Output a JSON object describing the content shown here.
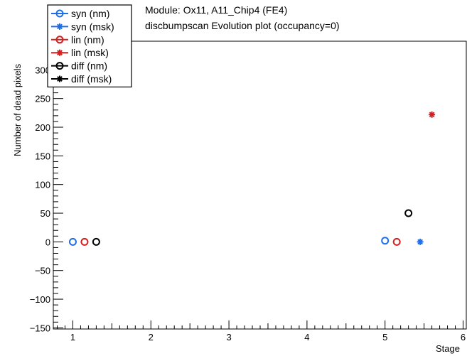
{
  "chart_data": {
    "type": "scatter",
    "title": [
      "Module: Ox11, A11_Chip4 (FE4)",
      "discbumpscan Evolution plot (occupancy=0)"
    ],
    "xlabel": "Stage",
    "ylabel": "Number of dead pixels",
    "xlim": [
      0.75,
      6.05
    ],
    "ylim": [
      -152,
      350
    ],
    "xticks": [
      1,
      2,
      3,
      4,
      5,
      6
    ],
    "yticks": [
      -150,
      -100,
      -50,
      0,
      50,
      100,
      150,
      200,
      250,
      300
    ],
    "ytick_labels": [
      "−150",
      "−100",
      "−50",
      "0",
      "50",
      "100",
      "150",
      "200",
      "250",
      "300"
    ],
    "legend_position": "top-left",
    "series": [
      {
        "name": "syn (nm)",
        "color": "#1f6ee8",
        "marker": "open-circle",
        "points": [
          [
            1.0,
            0
          ],
          [
            5.0,
            2
          ]
        ]
      },
      {
        "name": "syn (msk)",
        "color": "#1f6ee8",
        "marker": "star",
        "points": [
          [
            5.45,
            0
          ]
        ]
      },
      {
        "name": "lin (nm)",
        "color": "#d42020",
        "marker": "open-circle",
        "points": [
          [
            1.15,
            0
          ],
          [
            5.15,
            0
          ]
        ]
      },
      {
        "name": "lin (msk)",
        "color": "#d42020",
        "marker": "star",
        "points": [
          [
            5.6,
            222
          ]
        ]
      },
      {
        "name": "diff (nm)",
        "color": "#000000",
        "marker": "open-circle",
        "points": [
          [
            1.3,
            0
          ],
          [
            5.3,
            50
          ]
        ]
      },
      {
        "name": "diff (msk)",
        "color": "#000000",
        "marker": "star",
        "points": []
      }
    ]
  }
}
